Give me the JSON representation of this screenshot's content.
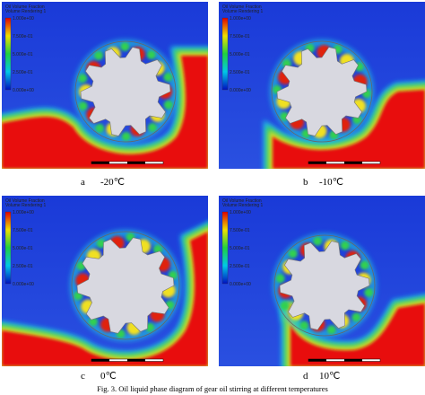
{
  "panels": [
    {
      "label": "a",
      "temperature": "-20℃",
      "legend": {
        "title": "Oil Volume Fraction",
        "subtitle": "Volume Rendering 1",
        "ticks": [
          "1.000e+00",
          "7.500e-01",
          "5.000e-01",
          "2.500e-01",
          "0.000e+00"
        ]
      }
    },
    {
      "label": "b",
      "temperature": "-10℃",
      "legend": {
        "title": "Oil Volume Fraction",
        "subtitle": "Volume Rendering 1",
        "ticks": [
          "1.000e+00",
          "7.500e-01",
          "5.000e-01",
          "2.500e-01",
          "0.000e+00"
        ]
      }
    },
    {
      "label": "c",
      "temperature": "0℃",
      "legend": {
        "title": "Oil Volume Fraction",
        "subtitle": "Volume Rendering 1",
        "ticks": [
          "1.000e+00",
          "7.500e-01",
          "5.000e-01",
          "2.500e-01",
          "0.000e+00"
        ]
      }
    },
    {
      "label": "d",
      "temperature": "10℃",
      "legend": {
        "title": "Oil Volume Fraction",
        "subtitle": "Volume Rendering 1",
        "ticks": [
          "1.000e+00",
          "7.500e-01",
          "5.000e-01",
          "2.500e-01",
          "0.000e+00"
        ]
      }
    }
  ],
  "caption": "Fig. 3. Oil liquid phase diagram of gear oil stirring at different temperatures"
}
